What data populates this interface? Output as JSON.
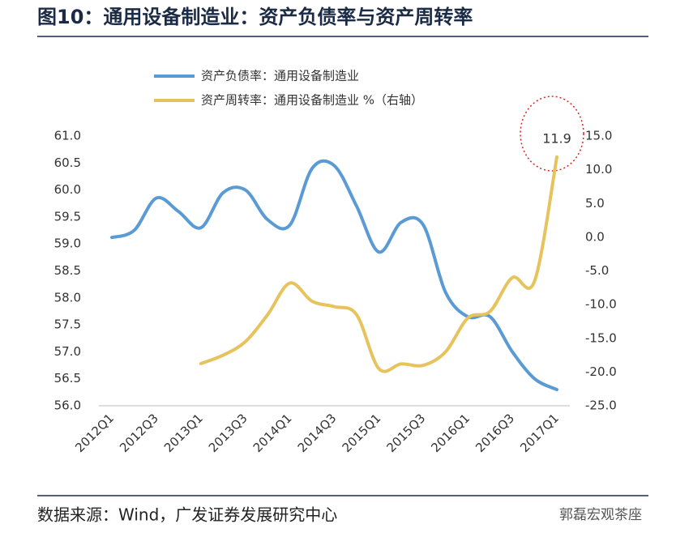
{
  "chart_data": {
    "type": "line",
    "title": "图10：通用设备制造业：资产负债率与资产周转率",
    "source": "数据来源：Wind，广发证券发展研究中心",
    "watermark": "郭磊宏观茶座",
    "categories": [
      "2012Q1",
      null,
      "2012Q3",
      null,
      "2013Q1",
      null,
      "2013Q3",
      null,
      "2014Q1",
      null,
      "2014Q3",
      null,
      "2015Q1",
      null,
      "2015Q3",
      null,
      "2016Q1",
      null,
      "2016Q3",
      null,
      "2017Q1"
    ],
    "series": [
      {
        "name": "资产负债率：通用设备制造业",
        "color": "#5b9bd5",
        "values": [
          59.12,
          59.25,
          59.85,
          59.6,
          59.3,
          59.95,
          60.0,
          59.45,
          59.35,
          60.4,
          60.45,
          59.7,
          58.85,
          59.4,
          59.35,
          58.1,
          57.65,
          57.65,
          57.0,
          56.5,
          56.3
        ]
      },
      {
        "name": "资产周转率：通用设备制造业 %（右轴）",
        "color": "#e6c35c",
        "axis": "y2",
        "values": [
          null,
          null,
          null,
          null,
          -18.75,
          -17.5,
          -15.5,
          -11.5,
          -6.8,
          -9.5,
          -10.3,
          -11.5,
          -19.5,
          -18.8,
          -19.0,
          -17.0,
          -12.0,
          -11.0,
          -6.0,
          -6.5,
          11.9
        ],
        "value_labels": [
          null,
          null,
          null,
          null,
          null,
          null,
          null,
          null,
          null,
          null,
          null,
          null,
          null,
          null,
          null,
          null,
          null,
          null,
          null,
          null,
          "11.9"
        ]
      }
    ],
    "ylim": [
      56.0,
      61.0
    ],
    "yticks": [
      {
        "value": 56.0,
        "label": "56.0"
      },
      {
        "value": 56.5,
        "label": "56.5"
      },
      {
        "value": 57.0,
        "label": "57.0"
      },
      {
        "value": 57.5,
        "label": "57.5"
      },
      {
        "value": 58.0,
        "label": "58.0"
      },
      {
        "value": 58.5,
        "label": "58.5"
      },
      {
        "value": 59.0,
        "label": "59.0"
      },
      {
        "value": 59.5,
        "label": "59.5"
      },
      {
        "value": 60.0,
        "label": "60.0"
      },
      {
        "value": 60.5,
        "label": "60.5"
      },
      {
        "value": 61.0,
        "label": "61.0"
      }
    ],
    "y2lim": [
      -25.0,
      15.0
    ],
    "y2ticks": [
      {
        "value": -25.0,
        "label": "-25.0"
      },
      {
        "value": -20.0,
        "label": "-20.0"
      },
      {
        "value": -15.0,
        "label": "-15.0"
      },
      {
        "value": -10.0,
        "label": "-10.0"
      },
      {
        "value": -5.0,
        "label": "-5.0"
      },
      {
        "value": 0.0,
        "label": "0.0"
      },
      {
        "value": 5.0,
        "label": "5.0"
      },
      {
        "value": 10.0,
        "label": "10.0"
      },
      {
        "value": 15.0,
        "label": "15.0"
      }
    ],
    "grid": false
  }
}
